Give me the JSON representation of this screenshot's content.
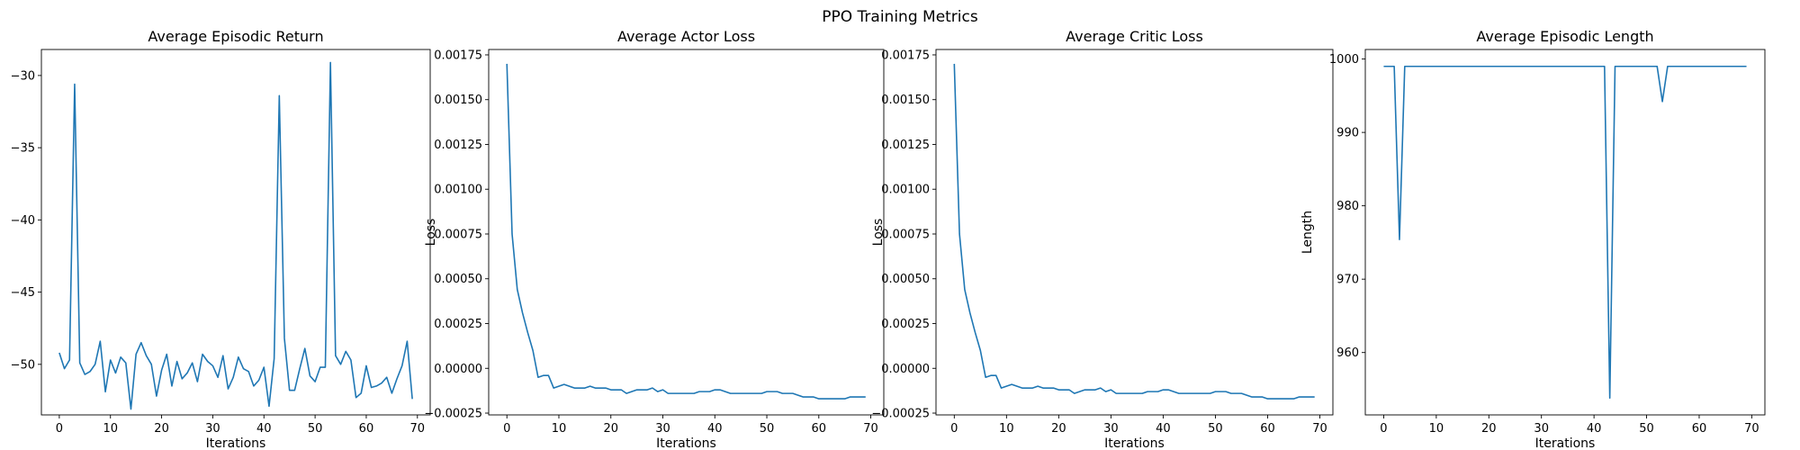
{
  "figure": {
    "title": "PPO Training Metrics"
  },
  "chart_data": [
    {
      "type": "line",
      "title": "Average Episodic Return",
      "xlabel": "Iterations",
      "ylabel": "",
      "xlim": [
        -3.5,
        72.5
      ],
      "ylim": [
        -53.5,
        -28.2
      ],
      "xticks": [
        0,
        10,
        20,
        30,
        40,
        50,
        60,
        70
      ],
      "yticks": [
        -50,
        -45,
        -40,
        -35,
        -30
      ],
      "ytick_labels": [
        "−50",
        "−45",
        "−40",
        "−35",
        "−30"
      ],
      "color": "#1f77b4",
      "x": [
        0,
        1,
        2,
        3,
        4,
        5,
        6,
        7,
        8,
        9,
        10,
        11,
        12,
        13,
        14,
        15,
        16,
        17,
        18,
        19,
        20,
        21,
        22,
        23,
        24,
        25,
        26,
        27,
        28,
        29,
        30,
        31,
        32,
        33,
        34,
        35,
        36,
        37,
        38,
        39,
        40,
        41,
        42,
        43,
        44,
        45,
        46,
        47,
        48,
        49,
        50,
        51,
        52,
        53,
        54,
        55,
        56,
        57,
        58,
        59,
        60,
        61,
        62,
        63,
        64,
        65,
        66,
        67,
        68,
        69
      ],
      "values": [
        -49.2,
        -50.3,
        -49.7,
        -30.6,
        -49.9,
        -50.7,
        -50.5,
        -50.0,
        -48.4,
        -51.9,
        -49.7,
        -50.6,
        -49.5,
        -49.9,
        -53.1,
        -49.3,
        -48.5,
        -49.4,
        -50.0,
        -52.2,
        -50.4,
        -49.3,
        -51.5,
        -49.8,
        -51.0,
        -50.6,
        -49.9,
        -51.2,
        -49.3,
        -49.8,
        -50.1,
        -50.9,
        -49.4,
        -51.7,
        -50.9,
        -49.5,
        -50.3,
        -50.5,
        -51.5,
        -51.1,
        -50.2,
        -52.9,
        -49.6,
        -31.4,
        -48.2,
        -51.8,
        -51.8,
        -50.3,
        -48.9,
        -50.8,
        -51.2,
        -50.2,
        -50.2,
        -29.1,
        -49.4,
        -50.0,
        -49.1,
        -49.7,
        -52.3,
        -52.0,
        -50.1,
        -51.6,
        -51.5,
        -51.3,
        -50.9,
        -52.0,
        -51.0,
        -50.1,
        -48.4,
        -52.4
      ]
    },
    {
      "type": "line",
      "title": "Average Actor Loss",
      "xlabel": "Iterations",
      "ylabel": "Loss",
      "xlim": [
        -3.5,
        72.5
      ],
      "ylim": [
        -0.00026,
        0.00178
      ],
      "xticks": [
        0,
        10,
        20,
        30,
        40,
        50,
        60,
        70
      ],
      "yticks": [
        -0.00025,
        0,
        0.00025,
        0.0005,
        0.00075,
        0.001,
        0.00125,
        0.0015,
        0.00175
      ],
      "ytick_labels": [
        "−0.00025",
        "0.00000",
        "0.00025",
        "0.00050",
        "0.00075",
        "0.00100",
        "0.00125",
        "0.00150",
        "0.00175"
      ],
      "color": "#1f77b4",
      "x": [
        0,
        1,
        2,
        3,
        4,
        5,
        6,
        7,
        8,
        9,
        10,
        11,
        12,
        13,
        14,
        15,
        16,
        17,
        18,
        19,
        20,
        21,
        22,
        23,
        24,
        25,
        26,
        27,
        28,
        29,
        30,
        31,
        32,
        33,
        34,
        35,
        36,
        37,
        38,
        39,
        40,
        41,
        42,
        43,
        44,
        45,
        46,
        47,
        48,
        49,
        50,
        51,
        52,
        53,
        54,
        55,
        56,
        57,
        58,
        59,
        60,
        61,
        62,
        63,
        64,
        65,
        66,
        67,
        68,
        69
      ],
      "values": [
        0.0017,
        0.00075,
        0.00044,
        0.00031,
        0.0002,
        0.0001,
        -5e-05,
        -4e-05,
        -4e-05,
        -0.00011,
        -0.0001,
        -9e-05,
        -0.0001,
        -0.00011,
        -0.00011,
        -0.00011,
        -0.0001,
        -0.00011,
        -0.00011,
        -0.00011,
        -0.00012,
        -0.00012,
        -0.00012,
        -0.00014,
        -0.00013,
        -0.00012,
        -0.00012,
        -0.00012,
        -0.00011,
        -0.00013,
        -0.00012,
        -0.00014,
        -0.00014,
        -0.00014,
        -0.00014,
        -0.00014,
        -0.00014,
        -0.00013,
        -0.00013,
        -0.00013,
        -0.00012,
        -0.00012,
        -0.00013,
        -0.00014,
        -0.00014,
        -0.00014,
        -0.00014,
        -0.00014,
        -0.00014,
        -0.00014,
        -0.00013,
        -0.00013,
        -0.00013,
        -0.00014,
        -0.00014,
        -0.00014,
        -0.00015,
        -0.00016,
        -0.00016,
        -0.00016,
        -0.00017,
        -0.00017,
        -0.00017,
        -0.00017,
        -0.00017,
        -0.00017,
        -0.00016,
        -0.00016,
        -0.00016,
        -0.00016
      ]
    },
    {
      "type": "line",
      "title": "Average Critic Loss",
      "xlabel": "Iterations",
      "ylabel": "Loss",
      "xlim": [
        -3.5,
        72.5
      ],
      "ylim": [
        -0.00026,
        0.00178
      ],
      "xticks": [
        0,
        10,
        20,
        30,
        40,
        50,
        60,
        70
      ],
      "yticks": [
        -0.00025,
        0,
        0.00025,
        0.0005,
        0.00075,
        0.001,
        0.00125,
        0.0015,
        0.00175
      ],
      "ytick_labels": [
        "−0.00025",
        "0.00000",
        "0.00025",
        "0.00050",
        "0.00075",
        "0.00100",
        "0.00125",
        "0.00150",
        "0.00175"
      ],
      "color": "#1f77b4",
      "x": [
        0,
        1,
        2,
        3,
        4,
        5,
        6,
        7,
        8,
        9,
        10,
        11,
        12,
        13,
        14,
        15,
        16,
        17,
        18,
        19,
        20,
        21,
        22,
        23,
        24,
        25,
        26,
        27,
        28,
        29,
        30,
        31,
        32,
        33,
        34,
        35,
        36,
        37,
        38,
        39,
        40,
        41,
        42,
        43,
        44,
        45,
        46,
        47,
        48,
        49,
        50,
        51,
        52,
        53,
        54,
        55,
        56,
        57,
        58,
        59,
        60,
        61,
        62,
        63,
        64,
        65,
        66,
        67,
        68,
        69
      ],
      "values": [
        0.0017,
        0.00075,
        0.00044,
        0.00031,
        0.0002,
        0.0001,
        -5e-05,
        -4e-05,
        -4e-05,
        -0.00011,
        -0.0001,
        -9e-05,
        -0.0001,
        -0.00011,
        -0.00011,
        -0.00011,
        -0.0001,
        -0.00011,
        -0.00011,
        -0.00011,
        -0.00012,
        -0.00012,
        -0.00012,
        -0.00014,
        -0.00013,
        -0.00012,
        -0.00012,
        -0.00012,
        -0.00011,
        -0.00013,
        -0.00012,
        -0.00014,
        -0.00014,
        -0.00014,
        -0.00014,
        -0.00014,
        -0.00014,
        -0.00013,
        -0.00013,
        -0.00013,
        -0.00012,
        -0.00012,
        -0.00013,
        -0.00014,
        -0.00014,
        -0.00014,
        -0.00014,
        -0.00014,
        -0.00014,
        -0.00014,
        -0.00013,
        -0.00013,
        -0.00013,
        -0.00014,
        -0.00014,
        -0.00014,
        -0.00015,
        -0.00016,
        -0.00016,
        -0.00016,
        -0.00017,
        -0.00017,
        -0.00017,
        -0.00017,
        -0.00017,
        -0.00017,
        -0.00016,
        -0.00016,
        -0.00016,
        -0.00016
      ]
    },
    {
      "type": "line",
      "title": "Average Episodic Length",
      "xlabel": "Iterations",
      "ylabel": "Length",
      "xlim": [
        -3.5,
        72.5
      ],
      "ylim": [
        951.5,
        1001.3
      ],
      "xticks": [
        0,
        10,
        20,
        30,
        40,
        50,
        60,
        70
      ],
      "yticks": [
        960,
        970,
        980,
        990,
        1000
      ],
      "ytick_labels": [
        "960",
        "970",
        "980",
        "990",
        "1000"
      ],
      "color": "#1f77b4",
      "x": [
        0,
        1,
        2,
        3,
        4,
        5,
        6,
        7,
        8,
        9,
        10,
        11,
        12,
        13,
        14,
        15,
        16,
        17,
        18,
        19,
        20,
        21,
        22,
        23,
        24,
        25,
        26,
        27,
        28,
        29,
        30,
        31,
        32,
        33,
        34,
        35,
        36,
        37,
        38,
        39,
        40,
        41,
        42,
        43,
        44,
        45,
        46,
        47,
        48,
        49,
        50,
        51,
        52,
        53,
        54,
        55,
        56,
        57,
        58,
        59,
        60,
        61,
        62,
        63,
        64,
        65,
        66,
        67,
        68,
        69
      ],
      "values": [
        999,
        999,
        999,
        975.4,
        999,
        999,
        999,
        999,
        999,
        999,
        999,
        999,
        999,
        999,
        999,
        999,
        999,
        999,
        999,
        999,
        999,
        999,
        999,
        999,
        999,
        999,
        999,
        999,
        999,
        999,
        999,
        999,
        999,
        999,
        999,
        999,
        999,
        999,
        999,
        999,
        999,
        999,
        999,
        953.8,
        999,
        999,
        999,
        999,
        999,
        999,
        999,
        999,
        999,
        994.2,
        999,
        999,
        999,
        999,
        999,
        999,
        999,
        999,
        999,
        999,
        999,
        999,
        999,
        999,
        999,
        999
      ]
    }
  ]
}
